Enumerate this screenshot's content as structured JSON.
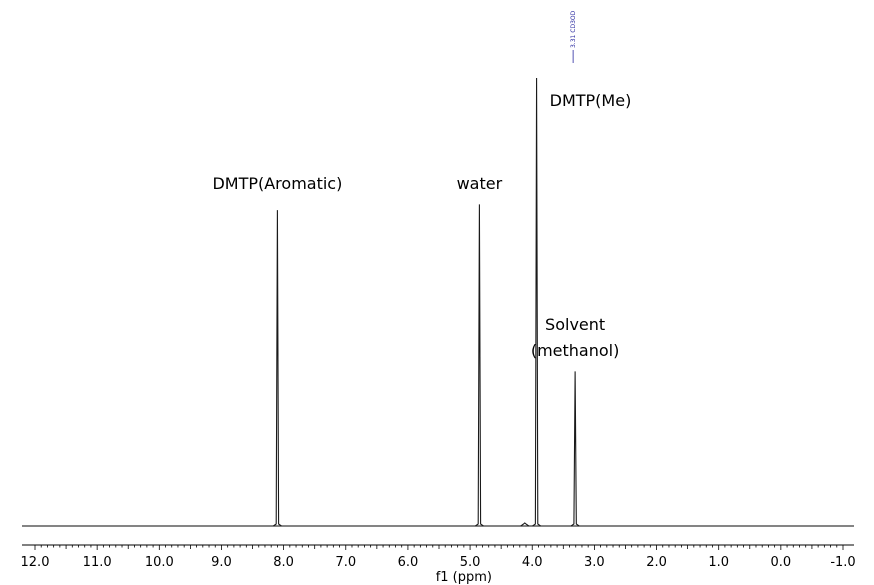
{
  "chart_data": {
    "type": "line",
    "title": "",
    "xlabel": "f1 (ppm)",
    "ylabel": "",
    "xlim": [
      12.2,
      -1.2
    ],
    "x_reversed": true,
    "grid": false,
    "ticks": [
      12.0,
      11.0,
      10.0,
      9.0,
      8.0,
      7.0,
      6.0,
      5.0,
      4.0,
      3.0,
      2.0,
      1.0,
      0.0,
      -1.0
    ],
    "tick_labels": [
      "12.0",
      "11.0",
      "10.0",
      "9.0",
      "8.0",
      "7.0",
      "6.0",
      "5.0",
      "4.0",
      "3.0",
      "2.0",
      "1.0",
      "0.0",
      "-1.0"
    ],
    "peaks": [
      {
        "ppm": 8.1,
        "height": 0.705
      },
      {
        "ppm": 4.85,
        "height": 0.718
      },
      {
        "ppm": 4.12,
        "height": 0.005
      },
      {
        "ppm": 3.93,
        "height": 1.0
      },
      {
        "ppm": 3.31,
        "height": 0.345
      }
    ],
    "annotations": [
      {
        "text": "DMTP(Aromatic)",
        "ppm": 8.1
      },
      {
        "text": "water",
        "ppm": 4.85
      },
      {
        "text": "DMTP(Me)",
        "ppm": 3.54
      },
      {
        "text": "Solvent",
        "ppm": 3.31
      },
      {
        "text": "(methanol)",
        "ppm": 3.31
      }
    ],
    "reference_label": "3.31 CD3OD",
    "reference_ppm": 3.31
  }
}
